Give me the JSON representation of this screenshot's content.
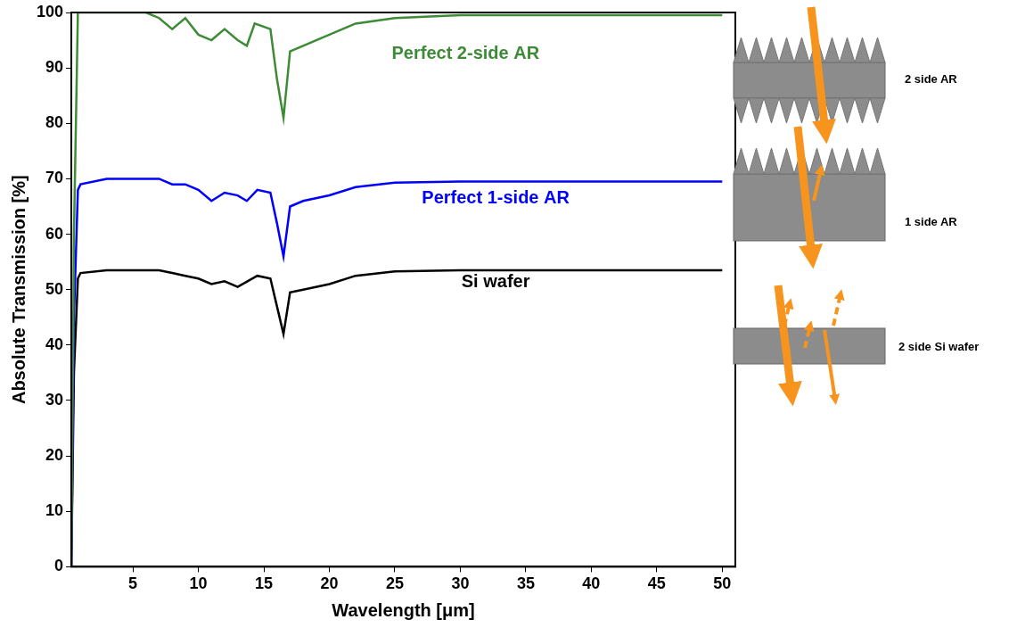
{
  "chart_data": {
    "type": "line",
    "x_label": "Wavelength [μm]",
    "y_label": "Absolute Transmission [%]",
    "xlim": [
      0.3,
      51
    ],
    "xticks": [
      5,
      10,
      15,
      20,
      25,
      30,
      35,
      40,
      45,
      50
    ],
    "ylim": [
      0,
      100
    ],
    "yticks": [
      0,
      10,
      20,
      30,
      40,
      50,
      60,
      70,
      80,
      90,
      100
    ],
    "grid": false,
    "series": [
      {
        "name": "Perfect 2-side AR",
        "color": "#3d8b37",
        "label_x": 30.4,
        "label_y": 92.5,
        "x": [
          0.3,
          0.5,
          0.8,
          1,
          3,
          6,
          7,
          8,
          9,
          10,
          11,
          12,
          13,
          13.7,
          14.3,
          15.5,
          16,
          16.5,
          17,
          18,
          20,
          22,
          25,
          30,
          40,
          50
        ],
        "values": [
          0,
          60,
          100,
          100,
          100,
          100,
          99,
          97,
          99,
          96,
          95,
          97,
          95,
          94,
          98,
          97,
          88,
          81,
          93,
          94,
          96,
          98,
          99,
          99.5,
          99.5,
          99.5
        ]
      },
      {
        "name": "Perfect 1-side AR",
        "color": "#0000ff",
        "label_x": 32.7,
        "label_y": 66.4,
        "x": [
          0.3,
          0.5,
          0.8,
          1,
          3,
          7,
          8,
          9,
          10,
          11,
          12,
          13,
          13.7,
          14.5,
          15.5,
          16,
          16.5,
          17,
          18,
          20,
          22,
          25,
          30,
          40,
          50
        ],
        "values": [
          0,
          45,
          68,
          69,
          70,
          70,
          69,
          69,
          68,
          66,
          67.5,
          67,
          66,
          68,
          67.5,
          62,
          56,
          65,
          66,
          67,
          68.5,
          69.3,
          69.5,
          69.5,
          69.5
        ]
      },
      {
        "name": "Si wafer",
        "color": "#000000",
        "label_x": 32.7,
        "label_y": 51.4,
        "x": [
          0.3,
          0.5,
          0.8,
          1,
          3,
          7,
          8,
          9,
          10,
          11,
          12,
          13,
          14.5,
          15.5,
          16,
          16.5,
          17,
          18,
          20,
          22,
          25,
          30,
          40,
          50
        ],
        "values": [
          0,
          35,
          52,
          53,
          53.5,
          53.5,
          53,
          52.5,
          52,
          51,
          51.5,
          50.5,
          52.5,
          52,
          47,
          42,
          49.5,
          50,
          51,
          52.5,
          53.3,
          53.5,
          53.5,
          53.5
        ]
      }
    ]
  },
  "schematic": {
    "labels": [
      "2 side AR",
      "1 side AR",
      "2 side Si wafer"
    ]
  }
}
